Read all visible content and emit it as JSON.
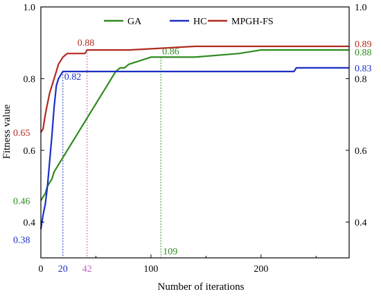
{
  "colors": {
    "ga": "#2e8b1e",
    "hc": "#1a2fc4",
    "mpgh": "#b02a1e",
    "axis": "#000000",
    "guide_magenta": "#c060c0"
  },
  "chart_data": {
    "type": "line",
    "title": "",
    "xlabel": "Number of iterations",
    "ylabel": "Fitness value",
    "xlim": [
      0,
      280
    ],
    "ylim": [
      0.3,
      1.0
    ],
    "x_ticks": [
      0,
      100,
      200
    ],
    "x_tick_labels": [
      "0",
      "100",
      "200"
    ],
    "y_ticks": [
      0.4,
      0.6,
      0.8,
      1.0
    ],
    "y_tick_labels": [
      "0.4",
      "0.6",
      "0.8",
      "1.0"
    ],
    "y_ticks_right": [
      0.4,
      0.6,
      0.8
    ],
    "y_tick_labels_right": [
      "0.4",
      "0.6",
      "0.8"
    ],
    "legend": {
      "placement": "top",
      "entries": [
        "GA",
        "HC",
        "MPGH-FS"
      ]
    },
    "series": [
      {
        "name": "GA",
        "color_key": "ga",
        "x": [
          0,
          2,
          4,
          6,
          8,
          10,
          12,
          14,
          16,
          18,
          20,
          24,
          28,
          32,
          36,
          40,
          44,
          48,
          52,
          56,
          60,
          64,
          68,
          72,
          76,
          80,
          90,
          100,
          109,
          140,
          180,
          200,
          280
        ],
        "y": [
          0.46,
          0.47,
          0.48,
          0.5,
          0.51,
          0.52,
          0.54,
          0.55,
          0.56,
          0.57,
          0.58,
          0.6,
          0.62,
          0.64,
          0.66,
          0.68,
          0.7,
          0.72,
          0.74,
          0.76,
          0.78,
          0.8,
          0.82,
          0.83,
          0.83,
          0.84,
          0.85,
          0.86,
          0.86,
          0.86,
          0.87,
          0.88,
          0.88
        ]
      },
      {
        "name": "HC",
        "color_key": "hc",
        "x": [
          0,
          2,
          4,
          6,
          8,
          10,
          12,
          14,
          16,
          18,
          20,
          30,
          60,
          100,
          150,
          200,
          230,
          232,
          280
        ],
        "y": [
          0.38,
          0.42,
          0.45,
          0.5,
          0.57,
          0.64,
          0.72,
          0.78,
          0.8,
          0.81,
          0.82,
          0.82,
          0.82,
          0.82,
          0.82,
          0.82,
          0.82,
          0.83,
          0.83
        ]
      },
      {
        "name": "MPGH-FS",
        "color_key": "mpgh",
        "x": [
          0,
          2,
          4,
          6,
          8,
          10,
          12,
          14,
          16,
          18,
          20,
          24,
          28,
          32,
          36,
          40,
          42,
          80,
          140,
          200,
          280
        ],
        "y": [
          0.65,
          0.66,
          0.7,
          0.73,
          0.76,
          0.78,
          0.8,
          0.82,
          0.84,
          0.85,
          0.86,
          0.87,
          0.87,
          0.87,
          0.87,
          0.87,
          0.88,
          0.88,
          0.89,
          0.89,
          0.89
        ]
      }
    ],
    "annotations": [
      {
        "text": "0.88",
        "series": "mpgh",
        "x": 42,
        "y": 0.88
      },
      {
        "text": "0.82",
        "series": "hc",
        "x": 20,
        "y": 0.82
      },
      {
        "text": "0.86",
        "series": "ga",
        "x": 109,
        "y": 0.86
      },
      {
        "text": "0.65",
        "series": "mpgh",
        "x": 0,
        "y": 0.65
      },
      {
        "text": "0.46",
        "series": "ga",
        "x": 0,
        "y": 0.46
      },
      {
        "text": "0.38",
        "series": "hc",
        "x": 0,
        "y": 0.38
      },
      {
        "text": "0.89",
        "series": "mpgh",
        "x": 280,
        "y": 0.89
      },
      {
        "text": "0.88",
        "series": "ga",
        "x": 280,
        "y": 0.88
      },
      {
        "text": "0.83",
        "series": "hc",
        "x": 280,
        "y": 0.83
      }
    ],
    "guides": [
      {
        "x": 20,
        "label": "20",
        "color_key": "hc"
      },
      {
        "x": 42,
        "label": "42",
        "color_key": "guide_magenta"
      },
      {
        "x": 109,
        "label": "109",
        "color_key": "ga"
      }
    ]
  }
}
